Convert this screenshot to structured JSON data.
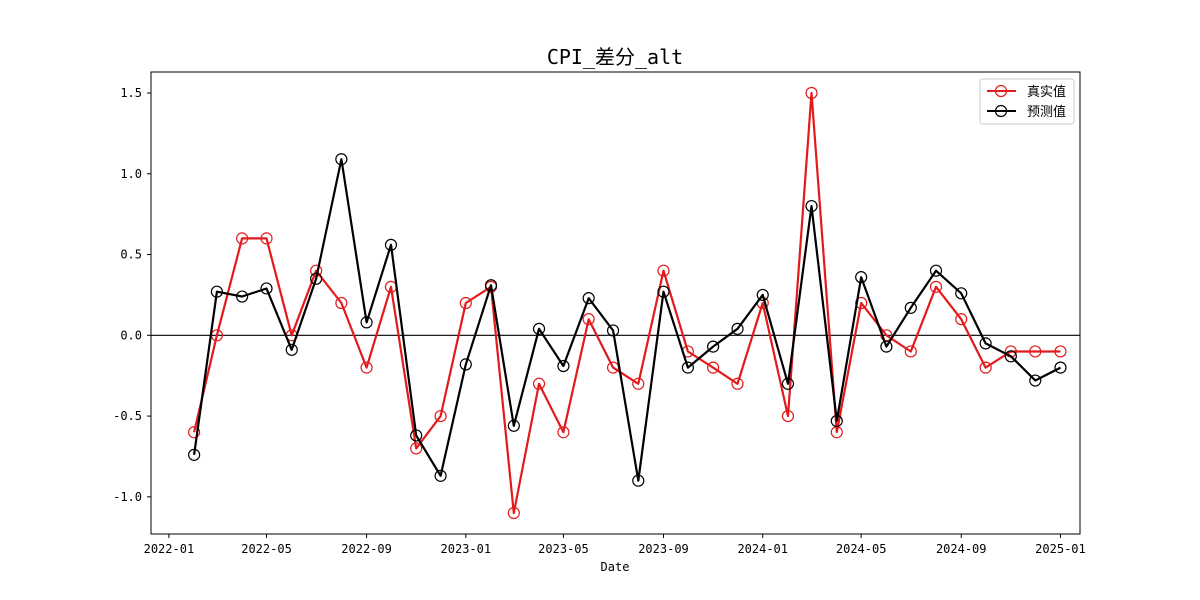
{
  "chart_data": {
    "type": "line",
    "title": "CPI_差分_alt",
    "xlabel": "Date",
    "ylabel": "",
    "x_range": [
      "2021-12-10",
      "2025-01-25"
    ],
    "ylim": [
      -1.23,
      1.63
    ],
    "x_ticks": [
      "2022-01",
      "2022-05",
      "2022-09",
      "2023-01",
      "2023-05",
      "2023-09",
      "2024-01",
      "2024-05",
      "2024-09",
      "2025-01"
    ],
    "y_ticks": [
      -1.0,
      -0.5,
      0.0,
      0.5,
      1.0,
      1.5
    ],
    "y_tick_labels": [
      "-1.0",
      "-0.5",
      "0.0",
      "0.5",
      "1.0",
      "1.5"
    ],
    "grid": false,
    "zero_line": true,
    "legend_position": "top-right",
    "dates": [
      "2022-02",
      "2022-03",
      "2022-04",
      "2022-05",
      "2022-06",
      "2022-07",
      "2022-08",
      "2022-09",
      "2022-10",
      "2022-11",
      "2022-12",
      "2023-01",
      "2023-02",
      "2023-03",
      "2023-04",
      "2023-05",
      "2023-06",
      "2023-07",
      "2023-08",
      "2023-09",
      "2023-10",
      "2023-11",
      "2023-12",
      "2024-01",
      "2024-02",
      "2024-03",
      "2024-04",
      "2024-05",
      "2024-06",
      "2024-07",
      "2024-08",
      "2024-09",
      "2024-10",
      "2024-11",
      "2024-12",
      "2025-01"
    ],
    "series": [
      {
        "name": "真实值",
        "color": "#e31a1c",
        "values": [
          -0.6,
          0.0,
          0.6,
          0.6,
          0.0,
          0.4,
          0.2,
          -0.2,
          0.3,
          -0.7,
          -0.5,
          0.2,
          0.3,
          -1.1,
          -0.3,
          -0.6,
          0.1,
          -0.2,
          -0.3,
          0.4,
          -0.1,
          -0.2,
          -0.3,
          0.2,
          -0.5,
          1.5,
          -0.6,
          0.2,
          0.0,
          -0.1,
          0.3,
          0.1,
          -0.2,
          -0.1,
          -0.1,
          -0.1
        ]
      },
      {
        "name": "预测值",
        "color": "#000000",
        "values": [
          -0.74,
          0.27,
          0.24,
          0.29,
          -0.09,
          0.35,
          1.09,
          0.08,
          0.56,
          -0.62,
          -0.87,
          -0.18,
          0.31,
          -0.56,
          0.04,
          -0.19,
          0.23,
          0.03,
          -0.9,
          0.27,
          -0.2,
          -0.07,
          0.04,
          0.25,
          -0.3,
          0.8,
          -0.53,
          0.36,
          -0.07,
          0.17,
          0.4,
          0.26,
          -0.05,
          -0.13,
          -0.28,
          -0.2
        ]
      }
    ]
  }
}
